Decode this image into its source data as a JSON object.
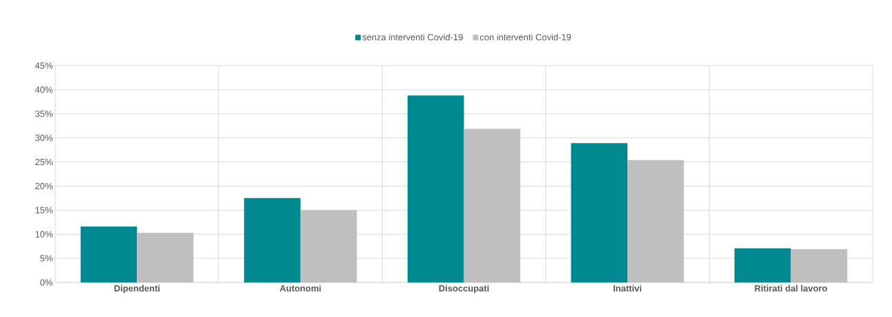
{
  "chart_data": {
    "type": "bar",
    "categories": [
      "Dipendenti",
      "Autonomi",
      "Disoccupati",
      "Inattivi",
      "Ritirati dal lavoro"
    ],
    "series": [
      {
        "name": "senza interventi Covid-19",
        "color": "#008891",
        "values": [
          11.6,
          17.5,
          38.8,
          28.9,
          7.1
        ]
      },
      {
        "name": "con interventi Covid-19",
        "color": "#bfbfbf",
        "values": [
          10.3,
          15.0,
          31.9,
          25.4,
          6.9
        ]
      }
    ],
    "ylim": [
      0,
      45
    ],
    "yticks": [
      {
        "value": 0,
        "label": "0%"
      },
      {
        "value": 5,
        "label": "5%"
      },
      {
        "value": 10,
        "label": "10%"
      },
      {
        "value": 15,
        "label": "15%"
      },
      {
        "value": 20,
        "label": "20%"
      },
      {
        "value": 25,
        "label": "25%"
      },
      {
        "value": 30,
        "label": "30%"
      },
      {
        "value": 35,
        "label": "35%"
      },
      {
        "value": 40,
        "label": "40%"
      },
      {
        "value": 45,
        "label": "45%"
      }
    ],
    "grid": true,
    "legend": "top"
  }
}
